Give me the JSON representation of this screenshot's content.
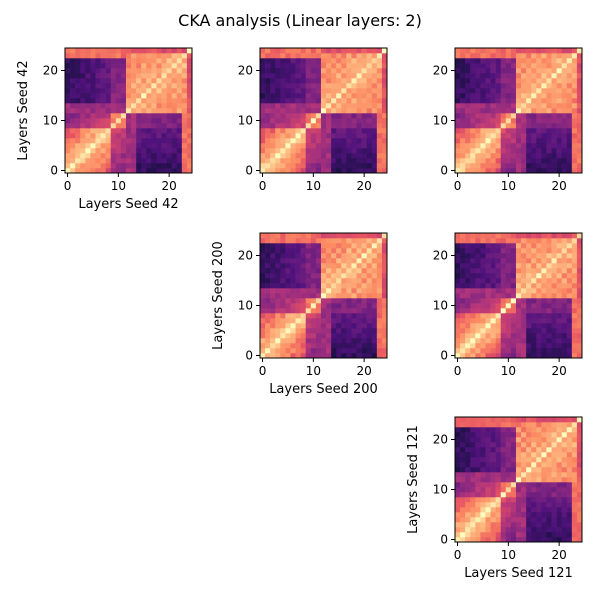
{
  "figure": {
    "title": "CKA analysis (Linear layers: 2)"
  },
  "chart_data": {
    "type": "heatmap",
    "colormap": "magma",
    "n_layers": 25,
    "x_range": [
      0,
      24
    ],
    "y_range": [
      0,
      24
    ],
    "ticks": [
      0,
      10,
      20
    ],
    "tick_labels": [
      "0",
      "10",
      "20"
    ],
    "grid": false,
    "legend": "none",
    "panels": [
      {
        "row": 0,
        "col": 0,
        "seed_x": 42,
        "seed_y": 42,
        "xlabel": "Layers Seed 42",
        "ylabel": "Layers Seed 42"
      },
      {
        "row": 0,
        "col": 1,
        "seed_x": 42,
        "seed_y": 200,
        "xlabel": "",
        "ylabel": ""
      },
      {
        "row": 0,
        "col": 2,
        "seed_x": 42,
        "seed_y": 121,
        "xlabel": "",
        "ylabel": ""
      },
      {
        "row": 1,
        "col": 1,
        "seed_x": 200,
        "seed_y": 200,
        "xlabel": "Layers Seed 200",
        "ylabel": "Layers Seed 200"
      },
      {
        "row": 1,
        "col": 2,
        "seed_x": 200,
        "seed_y": 121,
        "xlabel": "",
        "ylabel": ""
      },
      {
        "row": 2,
        "col": 2,
        "seed_x": 121,
        "seed_y": 121,
        "xlabel": "Layers Seed 121",
        "ylabel": "Layers Seed 121"
      }
    ]
  }
}
